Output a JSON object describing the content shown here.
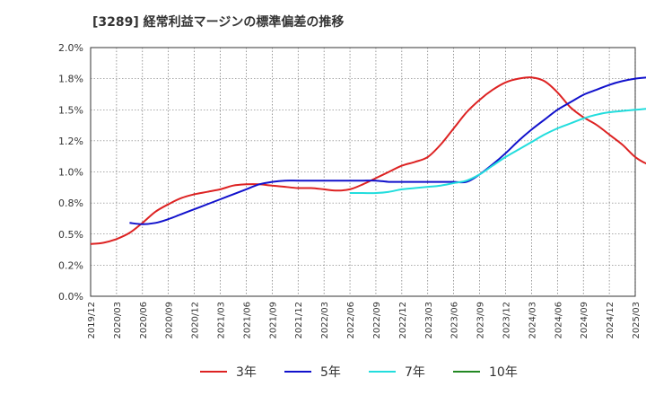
{
  "title": "[3289]  経常利益マージンの標準偏差の推移",
  "chart_data": {
    "type": "line",
    "title": "[3289]  経常利益マージンの標準偏差の推移",
    "xlabel": "",
    "ylabel": "",
    "ylim": [
      0,
      2.0
    ],
    "grid": true,
    "legend_position": "bottom",
    "y_ticks": [
      "0.0%",
      "0.2%",
      "0.5%",
      "0.8%",
      "1.0%",
      "1.2%",
      "1.5%",
      "1.8%",
      "2.0%"
    ],
    "y_tick_values": [
      0,
      0.25,
      0.5,
      0.75,
      1.0,
      1.25,
      1.5,
      1.75,
      2.0
    ],
    "x_ticks": [
      "2019/12",
      "2020/03",
      "2020/06",
      "2020/09",
      "2020/12",
      "2021/03",
      "2021/06",
      "2021/09",
      "2021/12",
      "2022/03",
      "2022/06",
      "2022/09",
      "2022/12",
      "2023/03",
      "2023/06",
      "2023/09",
      "2023/12",
      "2024/03",
      "2024/06",
      "2024/09",
      "2024/12",
      "2025/03"
    ],
    "series": [
      {
        "name": "3年",
        "color": "#dd2222",
        "start_index": 0,
        "values": [
          0.42,
          0.43,
          0.46,
          0.51,
          0.59,
          0.68,
          0.74,
          0.79,
          0.82,
          0.84,
          0.86,
          0.89,
          0.9,
          0.9,
          0.89,
          0.88,
          0.87,
          0.87,
          0.86,
          0.85,
          0.86,
          0.9,
          0.95,
          1.0,
          1.05,
          1.08,
          1.12,
          1.22,
          1.35,
          1.48,
          1.58,
          1.66,
          1.72,
          1.75,
          1.76,
          1.73,
          1.64,
          1.52,
          1.44,
          1.38,
          1.3,
          1.22,
          1.12,
          1.06,
          1.03
        ]
      },
      {
        "name": "5年",
        "color": "#1111cc",
        "start_index": 3,
        "values": [
          0.59,
          0.58,
          0.59,
          0.62,
          0.66,
          0.7,
          0.74,
          0.78,
          0.82,
          0.86,
          0.9,
          0.92,
          0.93,
          0.93,
          0.93,
          0.93,
          0.93,
          0.93,
          0.93,
          0.93,
          0.92,
          0.92,
          0.92,
          0.92,
          0.92,
          0.92,
          0.92,
          0.98,
          1.06,
          1.15,
          1.25,
          1.34,
          1.42,
          1.5,
          1.56,
          1.62,
          1.66,
          1.7,
          1.73,
          1.75,
          1.76,
          1.77,
          1.78,
          1.79,
          1.82
        ]
      },
      {
        "name": "7年",
        "color": "#22dddd",
        "start_index": 20,
        "values": [
          0.83,
          0.83,
          0.83,
          0.84,
          0.86,
          0.87,
          0.88,
          0.89,
          0.91,
          0.93,
          0.98,
          1.05,
          1.12,
          1.18,
          1.24,
          1.3,
          1.35,
          1.39,
          1.43,
          1.46,
          1.48,
          1.49,
          1.5,
          1.51,
          1.53,
          1.55
        ]
      },
      {
        "name": "10年",
        "color": "#228822",
        "start_index": 0,
        "values": []
      }
    ]
  }
}
